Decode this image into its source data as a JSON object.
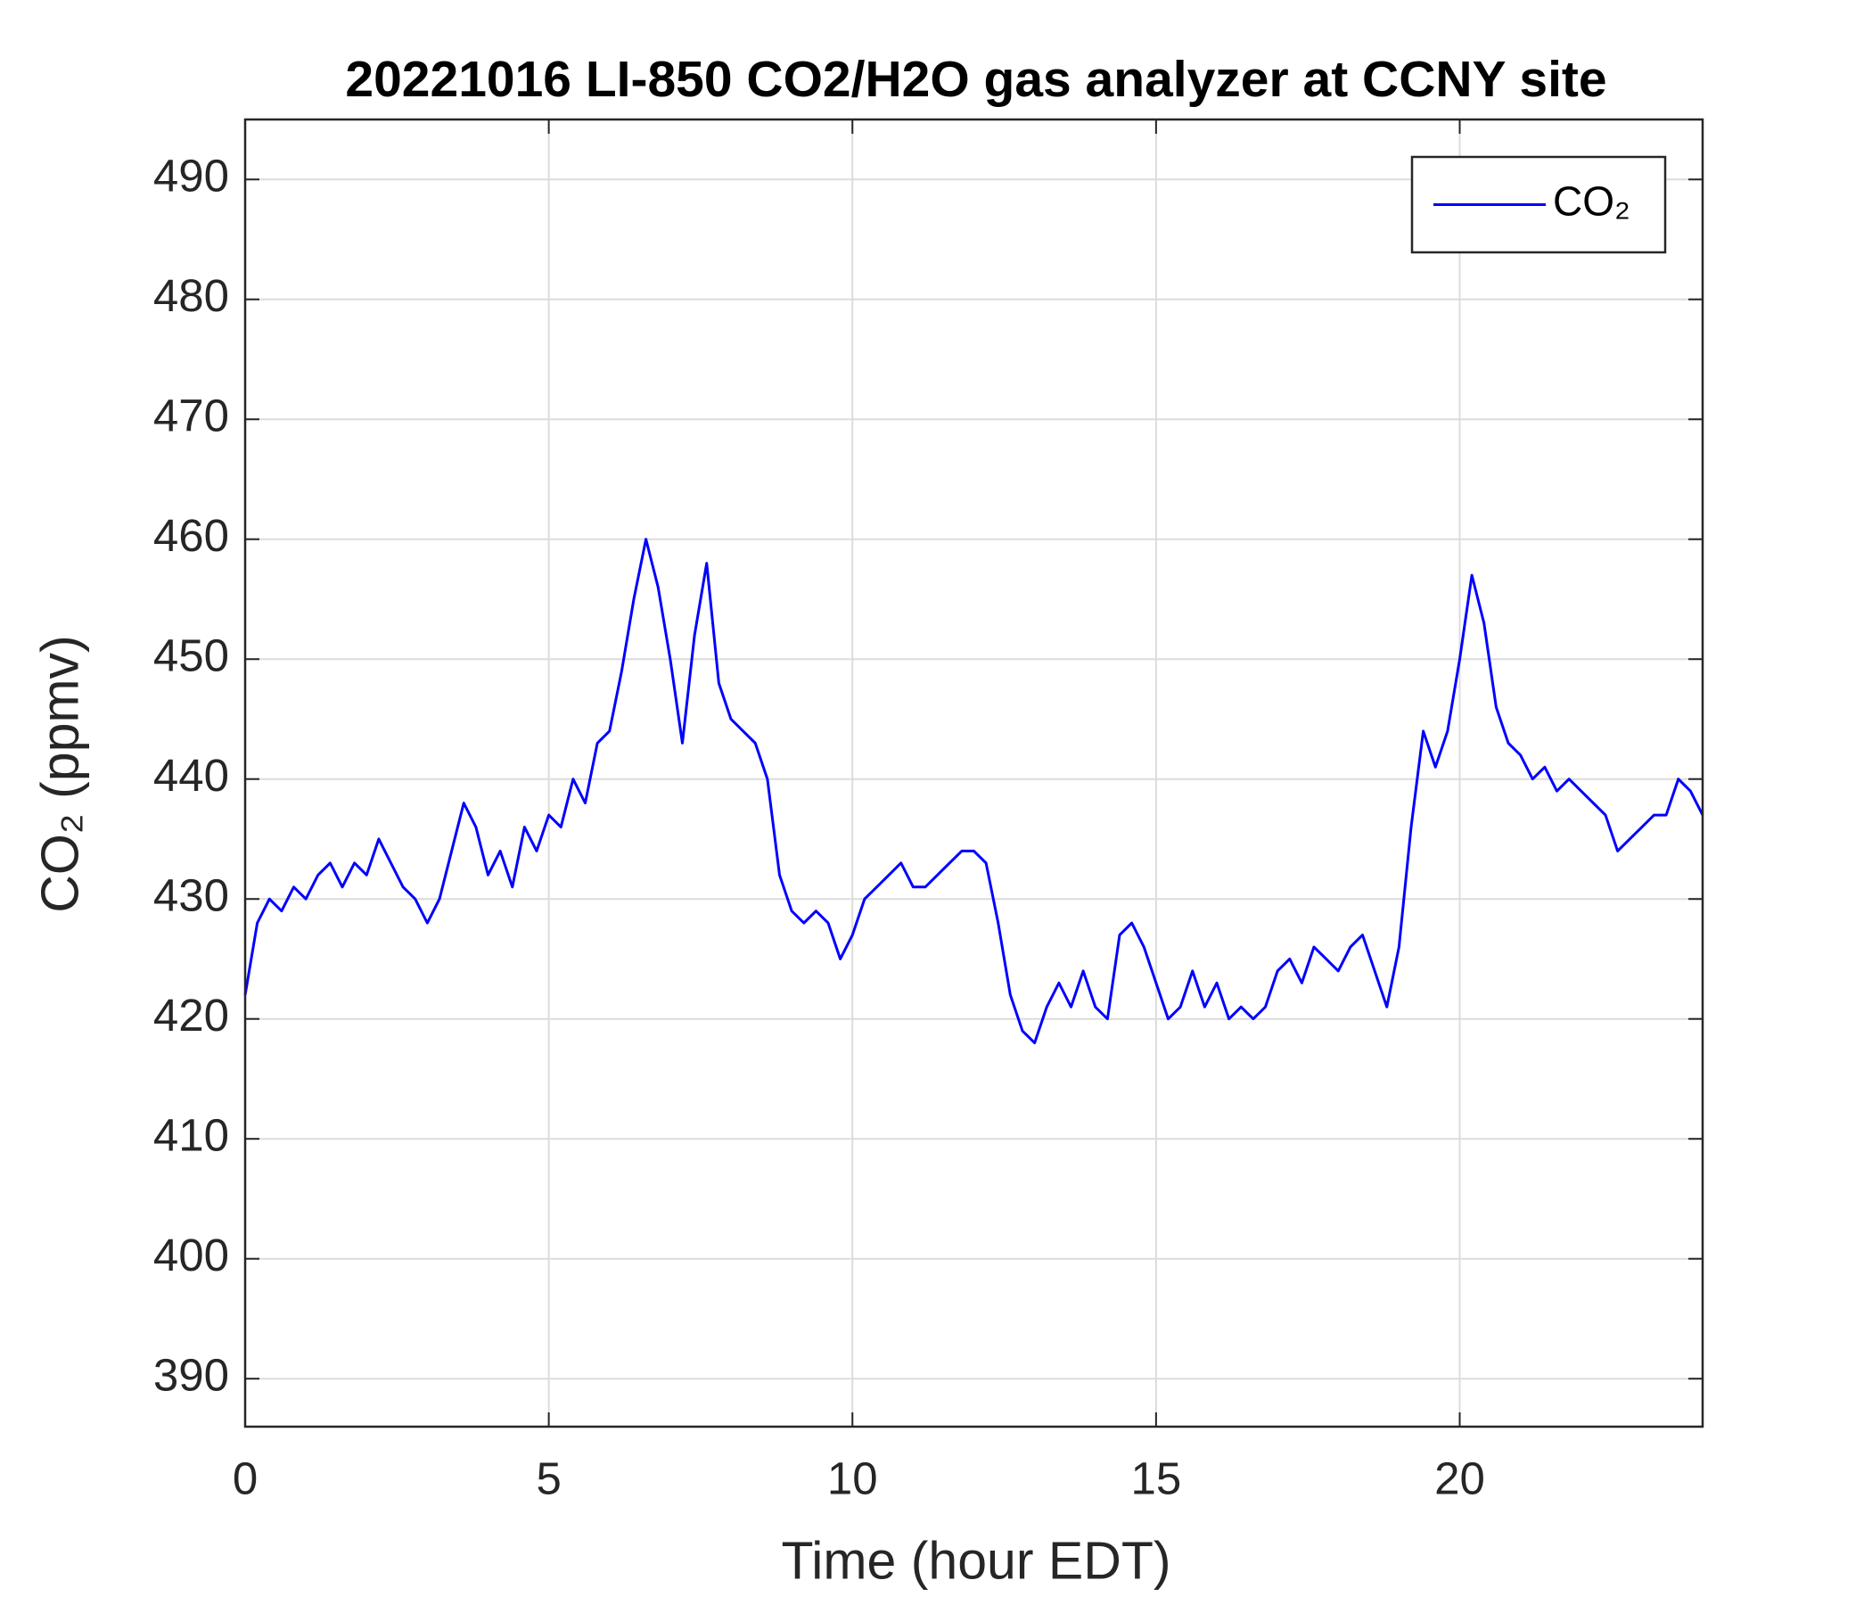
{
  "chart_data": {
    "type": "line",
    "title": "20221016 LI-850 CO2/H2O gas analyzer at CCNY site",
    "xlabel": "Time (hour EDT)",
    "ylabel": "CO₂ (ppmv)",
    "x": [
      0,
      0.2,
      0.4,
      0.6,
      0.8,
      1,
      1.2,
      1.4,
      1.6,
      1.8,
      2,
      2.2,
      2.4,
      2.6,
      2.8,
      3,
      3.2,
      3.4,
      3.6,
      3.8,
      4,
      4.2,
      4.4,
      4.6,
      4.8,
      5,
      5.2,
      5.4,
      5.6,
      5.8,
      6,
      6.2,
      6.4,
      6.6,
      6.8,
      7,
      7.2,
      7.4,
      7.6,
      7.8,
      8,
      8.2,
      8.4,
      8.6,
      8.8,
      9,
      9.2,
      9.4,
      9.6,
      9.8,
      10,
      10.2,
      10.4,
      10.6,
      10.8,
      11,
      11.2,
      11.4,
      11.6,
      11.8,
      12,
      12.2,
      12.4,
      12.6,
      12.8,
      13,
      13.2,
      13.4,
      13.6,
      13.8,
      14,
      14.2,
      14.4,
      14.6,
      14.8,
      15,
      15.2,
      15.4,
      15.6,
      15.8,
      16,
      16.2,
      16.4,
      16.6,
      16.8,
      17,
      17.2,
      17.4,
      17.6,
      17.8,
      18,
      18.2,
      18.4,
      18.6,
      18.8,
      19,
      19.2,
      19.4,
      19.6,
      19.8,
      20,
      20.2,
      20.4,
      20.6,
      20.8,
      21,
      21.2,
      21.4,
      21.6,
      21.8,
      22,
      22.2,
      22.4,
      22.6,
      22.8,
      23,
      23.2,
      23.4,
      23.6,
      23.8,
      24
    ],
    "series": [
      {
        "name": "CO₂",
        "color": "#0000ff",
        "values": [
          422,
          428,
          430,
          429,
          431,
          430,
          432,
          433,
          431,
          433,
          432,
          435,
          433,
          431,
          430,
          428,
          430,
          434,
          438,
          436,
          432,
          434,
          431,
          436,
          434,
          437,
          436,
          440,
          438,
          443,
          444,
          449,
          455,
          460,
          456,
          450,
          443,
          452,
          458,
          448,
          445,
          444,
          443,
          440,
          432,
          429,
          428,
          429,
          428,
          425,
          427,
          430,
          431,
          432,
          433,
          431,
          431,
          432,
          433,
          434,
          434,
          433,
          428,
          422,
          419,
          418,
          421,
          423,
          421,
          424,
          421,
          420,
          427,
          428,
          426,
          423,
          420,
          421,
          424,
          421,
          423,
          420,
          421,
          420,
          421,
          424,
          425,
          423,
          426,
          425,
          424,
          426,
          427,
          424,
          421,
          426,
          436,
          444,
          441,
          444,
          450,
          457,
          453,
          446,
          443,
          442,
          440,
          441,
          439,
          440,
          439,
          438,
          437,
          434,
          435,
          436,
          437,
          437,
          440,
          439,
          437
        ]
      }
    ],
    "xlim": [
      0,
      24
    ],
    "xticks": [
      0,
      5,
      10,
      15,
      20
    ],
    "ylim": [
      386,
      495
    ],
    "yticks": [
      390,
      400,
      410,
      420,
      430,
      440,
      450,
      460,
      470,
      480,
      490
    ],
    "grid": true,
    "legend": "northeast"
  }
}
